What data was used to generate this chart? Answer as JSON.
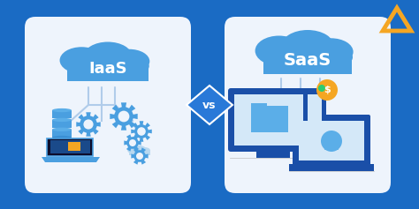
{
  "bg_color": "#1A6BC4",
  "card_color": "#EEF4FC",
  "cloud_color": "#4A9FE0",
  "cloud_color2": "#5BAEE8",
  "iaas_text": "IaaS",
  "saas_text": "SaaS",
  "vs_text": "vs",
  "vs_bg": "#2979D8",
  "gear_color": "#4A9FE0",
  "icon_color": "#4A9FE0",
  "logo_color": "#F5A623",
  "line_color": "#B0CCEA",
  "white": "#FFFFFF",
  "dark_blue": "#1565C0",
  "monitor_screen": "#c8dff5",
  "yellow": "#F5A623",
  "dark": "#1A1A2E"
}
